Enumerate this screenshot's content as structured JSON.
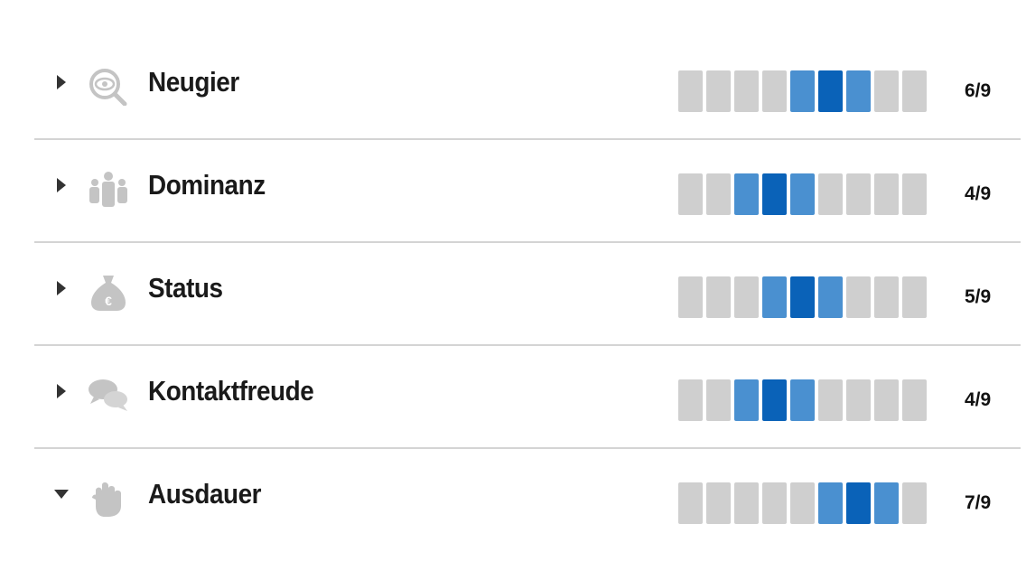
{
  "colors": {
    "inactive": "#cfcfcf",
    "near": "#4a90d0",
    "active": "#0a62b8",
    "icon": "#c4c4c4"
  },
  "max": 9,
  "items": [
    {
      "label": "Neugier",
      "icon": "magnifier-eye-icon",
      "value": 6,
      "score": "6/9",
      "expanded": false
    },
    {
      "label": "Dominanz",
      "icon": "group-people-icon",
      "value": 4,
      "score": "4/9",
      "expanded": false
    },
    {
      "label": "Status",
      "icon": "money-bag-icon",
      "value": 5,
      "score": "5/9",
      "expanded": false
    },
    {
      "label": "Kontaktfreude",
      "icon": "speech-bubbles-icon",
      "value": 4,
      "score": "4/9",
      "expanded": false
    },
    {
      "label": "Ausdauer",
      "icon": "fist-icon",
      "value": 7,
      "score": "7/9",
      "expanded": true
    }
  ]
}
